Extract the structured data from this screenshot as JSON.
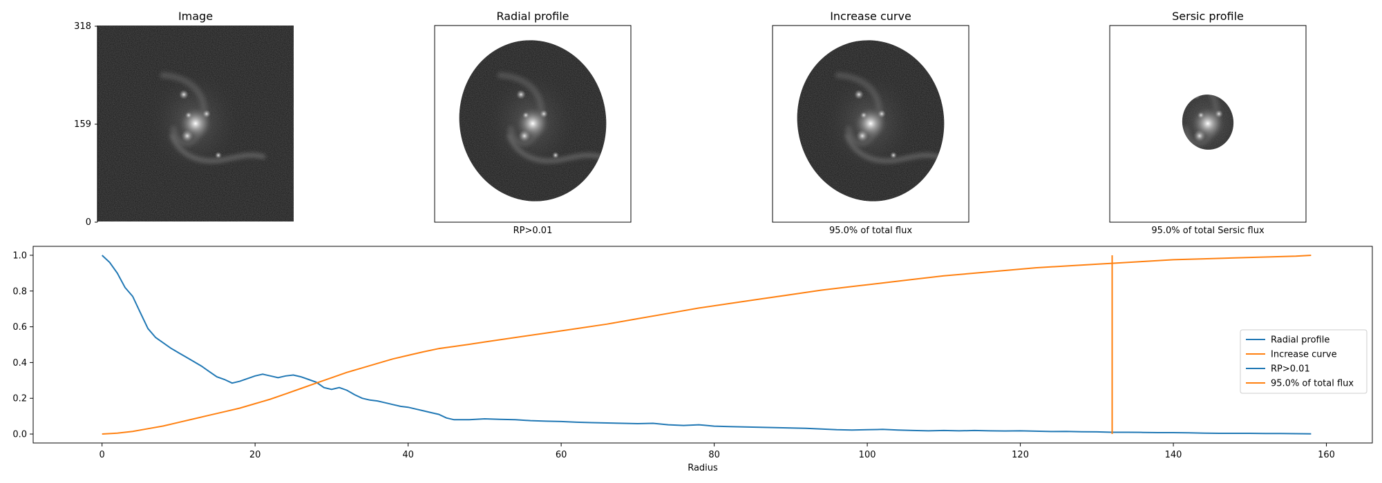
{
  "panels": [
    {
      "title": "Image",
      "caption": "",
      "mask": "none"
    },
    {
      "title": "Radial profile",
      "caption": "RP>0.01",
      "mask": "large-ellipse"
    },
    {
      "title": "Increase curve",
      "caption": "95.0% of total flux",
      "mask": "large-ellipse"
    },
    {
      "title": "Sersic profile",
      "caption": "95.0% of total Sersic flux",
      "mask": "small-ellipse"
    }
  ],
  "image_axis": {
    "yticks": [
      "318",
      "159",
      "0"
    ]
  },
  "colors": {
    "blue": "#1f77b4",
    "orange": "#ff7f0e"
  },
  "chart_data": {
    "type": "line",
    "xlabel": "Radius",
    "xlim": [
      -9,
      166
    ],
    "ylim": [
      -0.05,
      1.05
    ],
    "xticks": [
      0,
      20,
      40,
      60,
      80,
      100,
      120,
      140,
      160
    ],
    "yticks": [
      0.0,
      0.2,
      0.4,
      0.6,
      0.8,
      1.0
    ],
    "legend_position": "center-right",
    "legend": [
      "Radial profile",
      "Increase curve",
      "RP>0.01",
      "95.0% of total flux"
    ],
    "series": [
      {
        "name": "Radial profile",
        "color": "#1f77b4",
        "points": [
          [
            0,
            1.0
          ],
          [
            1,
            0.96
          ],
          [
            2,
            0.9
          ],
          [
            3,
            0.82
          ],
          [
            4,
            0.77
          ],
          [
            5,
            0.68
          ],
          [
            6,
            0.59
          ],
          [
            7,
            0.54
          ],
          [
            8,
            0.51
          ],
          [
            9,
            0.48
          ],
          [
            10,
            0.455
          ],
          [
            11,
            0.43
          ],
          [
            12,
            0.405
          ],
          [
            13,
            0.38
          ],
          [
            14,
            0.35
          ],
          [
            15,
            0.32
          ],
          [
            16,
            0.305
          ],
          [
            17,
            0.285
          ],
          [
            18,
            0.295
          ],
          [
            19,
            0.31
          ],
          [
            20,
            0.325
          ],
          [
            21,
            0.335
          ],
          [
            22,
            0.325
          ],
          [
            23,
            0.315
          ],
          [
            24,
            0.325
          ],
          [
            25,
            0.33
          ],
          [
            26,
            0.32
          ],
          [
            27,
            0.305
          ],
          [
            28,
            0.29
          ],
          [
            29,
            0.26
          ],
          [
            30,
            0.25
          ],
          [
            31,
            0.26
          ],
          [
            32,
            0.245
          ],
          [
            33,
            0.22
          ],
          [
            34,
            0.2
          ],
          [
            35,
            0.19
          ],
          [
            36,
            0.185
          ],
          [
            37,
            0.175
          ],
          [
            38,
            0.165
          ],
          [
            39,
            0.155
          ],
          [
            40,
            0.15
          ],
          [
            41,
            0.14
          ],
          [
            42,
            0.13
          ],
          [
            43,
            0.12
          ],
          [
            44,
            0.11
          ],
          [
            45,
            0.09
          ],
          [
            46,
            0.08
          ],
          [
            48,
            0.08
          ],
          [
            50,
            0.085
          ],
          [
            52,
            0.082
          ],
          [
            54,
            0.08
          ],
          [
            56,
            0.075
          ],
          [
            58,
            0.072
          ],
          [
            60,
            0.07
          ],
          [
            62,
            0.066
          ],
          [
            64,
            0.064
          ],
          [
            66,
            0.062
          ],
          [
            68,
            0.06
          ],
          [
            70,
            0.058
          ],
          [
            72,
            0.06
          ],
          [
            74,
            0.052
          ],
          [
            76,
            0.048
          ],
          [
            78,
            0.052
          ],
          [
            80,
            0.044
          ],
          [
            82,
            0.042
          ],
          [
            84,
            0.04
          ],
          [
            86,
            0.038
          ],
          [
            88,
            0.036
          ],
          [
            90,
            0.034
          ],
          [
            92,
            0.032
          ],
          [
            94,
            0.028
          ],
          [
            96,
            0.024
          ],
          [
            98,
            0.022
          ],
          [
            100,
            0.024
          ],
          [
            102,
            0.026
          ],
          [
            104,
            0.022
          ],
          [
            106,
            0.02
          ],
          [
            108,
            0.018
          ],
          [
            110,
            0.02
          ],
          [
            112,
            0.018
          ],
          [
            114,
            0.02
          ],
          [
            116,
            0.018
          ],
          [
            118,
            0.017
          ],
          [
            120,
            0.018
          ],
          [
            122,
            0.016
          ],
          [
            124,
            0.014
          ],
          [
            126,
            0.015
          ],
          [
            128,
            0.013
          ],
          [
            130,
            0.012
          ],
          [
            132,
            0.01
          ],
          [
            134,
            0.01
          ],
          [
            136,
            0.009
          ],
          [
            138,
            0.008
          ],
          [
            140,
            0.008
          ],
          [
            142,
            0.007
          ],
          [
            144,
            0.005
          ],
          [
            146,
            0.004
          ],
          [
            148,
            0.004
          ],
          [
            150,
            0.004
          ],
          [
            152,
            0.003
          ],
          [
            154,
            0.003
          ],
          [
            156,
            0.002
          ],
          [
            158,
            0.001
          ]
        ]
      },
      {
        "name": "Increase curve",
        "color": "#ff7f0e",
        "points": [
          [
            0,
            0.0
          ],
          [
            2,
            0.005
          ],
          [
            4,
            0.015
          ],
          [
            6,
            0.03
          ],
          [
            8,
            0.045
          ],
          [
            10,
            0.065
          ],
          [
            12,
            0.085
          ],
          [
            14,
            0.105
          ],
          [
            16,
            0.125
          ],
          [
            18,
            0.145
          ],
          [
            20,
            0.17
          ],
          [
            22,
            0.195
          ],
          [
            24,
            0.225
          ],
          [
            26,
            0.255
          ],
          [
            28,
            0.285
          ],
          [
            30,
            0.315
          ],
          [
            32,
            0.345
          ],
          [
            34,
            0.37
          ],
          [
            36,
            0.395
          ],
          [
            38,
            0.42
          ],
          [
            40,
            0.44
          ],
          [
            42,
            0.46
          ],
          [
            44,
            0.478
          ],
          [
            46,
            0.49
          ],
          [
            48,
            0.502
          ],
          [
            50,
            0.515
          ],
          [
            54,
            0.54
          ],
          [
            58,
            0.565
          ],
          [
            62,
            0.59
          ],
          [
            66,
            0.615
          ],
          [
            70,
            0.645
          ],
          [
            74,
            0.675
          ],
          [
            78,
            0.705
          ],
          [
            82,
            0.73
          ],
          [
            86,
            0.755
          ],
          [
            90,
            0.78
          ],
          [
            94,
            0.805
          ],
          [
            98,
            0.825
          ],
          [
            102,
            0.845
          ],
          [
            106,
            0.865
          ],
          [
            110,
            0.885
          ],
          [
            114,
            0.9
          ],
          [
            118,
            0.915
          ],
          [
            122,
            0.93
          ],
          [
            126,
            0.94
          ],
          [
            130,
            0.95
          ],
          [
            132,
            0.955
          ],
          [
            136,
            0.965
          ],
          [
            140,
            0.975
          ],
          [
            144,
            0.98
          ],
          [
            148,
            0.985
          ],
          [
            152,
            0.99
          ],
          [
            156,
            0.995
          ],
          [
            158,
            1.0
          ]
        ]
      },
      {
        "name": "RP>0.01",
        "color": "#1f77b4",
        "points": [
          [
            132,
            0
          ],
          [
            132,
            1
          ]
        ]
      },
      {
        "name": "95.0% of total flux",
        "color": "#ff7f0e",
        "points": [
          [
            132,
            0
          ],
          [
            132,
            1
          ]
        ]
      }
    ]
  }
}
